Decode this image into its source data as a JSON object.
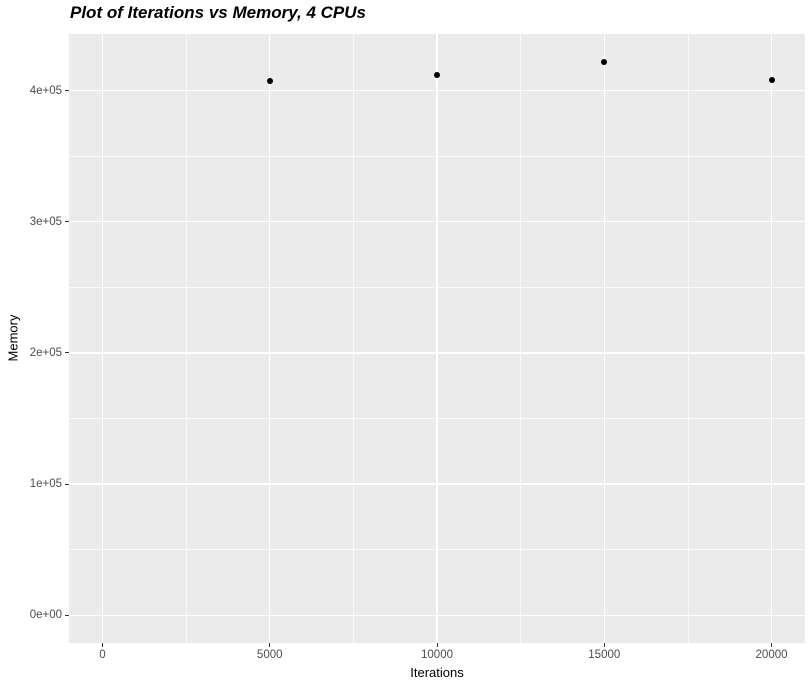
{
  "title": "Plot of Iterations vs Memory, 4 CPUs",
  "chart_data": {
    "type": "scatter",
    "title": "Plot of Iterations vs Memory, 4 CPUs",
    "xlabel": "Iterations",
    "ylabel": "Memory",
    "x": [
      5000,
      10000,
      15000,
      20000
    ],
    "y": [
      407000,
      412000,
      422000,
      408000
    ],
    "xlim": [
      -1000,
      21000
    ],
    "ylim": [
      -21100,
      443100
    ],
    "x_ticks": {
      "values": [
        0,
        5000,
        10000,
        15000,
        20000
      ],
      "labels": [
        "0",
        "5000",
        "10000",
        "15000",
        "20000"
      ]
    },
    "y_ticks": {
      "values": [
        0,
        100000,
        200000,
        300000,
        400000
      ],
      "labels": [
        "0e+00",
        "1e+05",
        "2e+05",
        "3e+05",
        "4e+05"
      ]
    },
    "x_minor": [
      2500,
      7500,
      12500,
      17500
    ],
    "y_minor": [
      50000,
      150000,
      250000,
      350000
    ],
    "grid": true,
    "legend": "none",
    "colors": {
      "background": "#FFFFFF",
      "panel_bg": "#EBEBEB",
      "grid_major": "#FFFFFF",
      "grid_minor": "#FFFFFF",
      "point": "#000000",
      "tick_mark": "#333333",
      "tick_label": "#4D4D4D",
      "axis_title": "#000000",
      "title": "#000000"
    }
  }
}
